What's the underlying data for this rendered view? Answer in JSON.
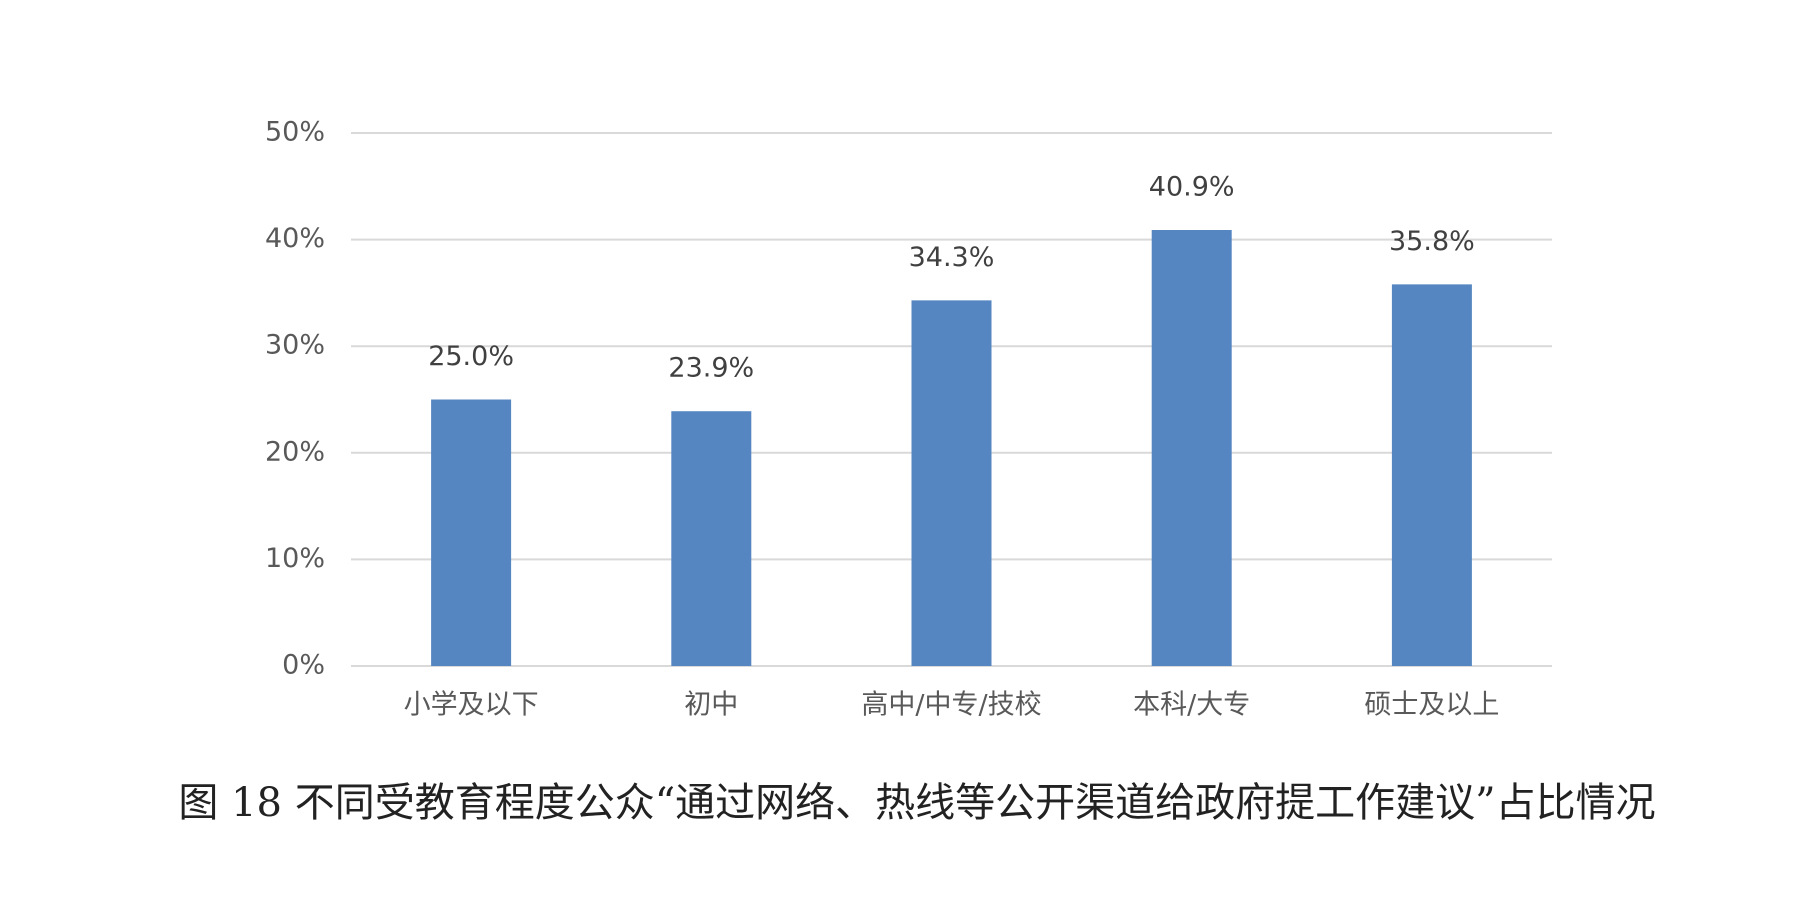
{
  "chart_data": {
    "type": "bar",
    "title": "图 18 不同受教育程度公众“通过网络、热线等公开渠道给政府提工作建议”占比情况",
    "categories": [
      "小学及以下",
      "初中",
      "高中/中专/技校",
      "本科/大专",
      "硕士及以上"
    ],
    "values": [
      25.0,
      23.9,
      34.3,
      40.9,
      35.8
    ],
    "value_labels": [
      "25.0%",
      "23.9%",
      "34.3%",
      "40.9%",
      "35.8%"
    ],
    "color": "#5586c2",
    "ylim": [
      0,
      50
    ],
    "yticks": [
      {
        "value": 0,
        "label": "0%"
      },
      {
        "value": 10,
        "label": "10%"
      },
      {
        "value": 20,
        "label": "20%"
      },
      {
        "value": 30,
        "label": "30%"
      },
      {
        "value": 40,
        "label": "40%"
      },
      {
        "value": 50,
        "label": "50%"
      }
    ],
    "grid": true
  }
}
